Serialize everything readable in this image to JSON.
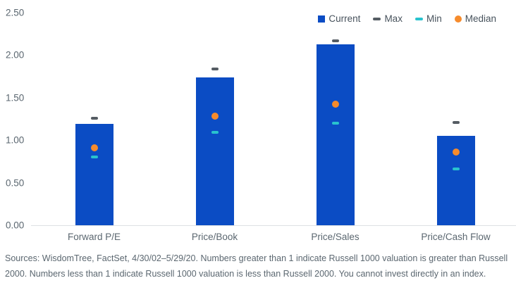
{
  "chart_data": {
    "type": "bar",
    "title": "",
    "xlabel": "",
    "ylabel": "",
    "categories": [
      "Forward P/E",
      "Price/Book",
      "Price/Sales",
      "Price/Cash Flow"
    ],
    "series": [
      {
        "name": "Current",
        "marker": "bar",
        "color": "#0b4cc4",
        "values": [
          1.19,
          1.74,
          2.13,
          1.05
        ]
      },
      {
        "name": "Max",
        "marker": "dash",
        "color": "#555c63",
        "values": [
          1.26,
          1.84,
          2.17,
          1.21
        ]
      },
      {
        "name": "Min",
        "marker": "dash",
        "color": "#29c3ce",
        "values": [
          0.8,
          1.09,
          1.2,
          0.66
        ]
      },
      {
        "name": "Median",
        "marker": "dot",
        "color": "#f68b2c",
        "values": [
          0.91,
          1.28,
          1.42,
          0.86
        ]
      }
    ],
    "ylim": [
      0,
      2.5
    ],
    "yticks": [
      {
        "value": 2.5,
        "label": "2.50"
      },
      {
        "value": 2.0,
        "label": "2.00"
      },
      {
        "value": 1.5,
        "label": "1.50"
      },
      {
        "value": 1.0,
        "label": "1.00"
      },
      {
        "value": 0.5,
        "label": "0.50"
      },
      {
        "value": 0.0,
        "label": "0.00"
      }
    ],
    "grid": false,
    "legend_position": "top-right"
  },
  "colors": {
    "bar_blue": "#0b4cc4",
    "max_gray": "#555c63",
    "min_cyan": "#29c3ce",
    "median_orange": "#f68b2c",
    "axis_text": "#5b6770",
    "legend_text": "#47525c",
    "axis_line": "#dde1e4",
    "background": "#ffffff"
  },
  "footer": {
    "lines": [
      "Sources: WisdomTree, FactSet, 4/30/02–5/29/20. Numbers greater than 1 indicate Russell 1000 valuation is greater than Russell",
      "2000. Numbers less than 1 indicate Russell 1000 valuation is less than Russell 2000. You cannot invest directly in an index."
    ]
  }
}
